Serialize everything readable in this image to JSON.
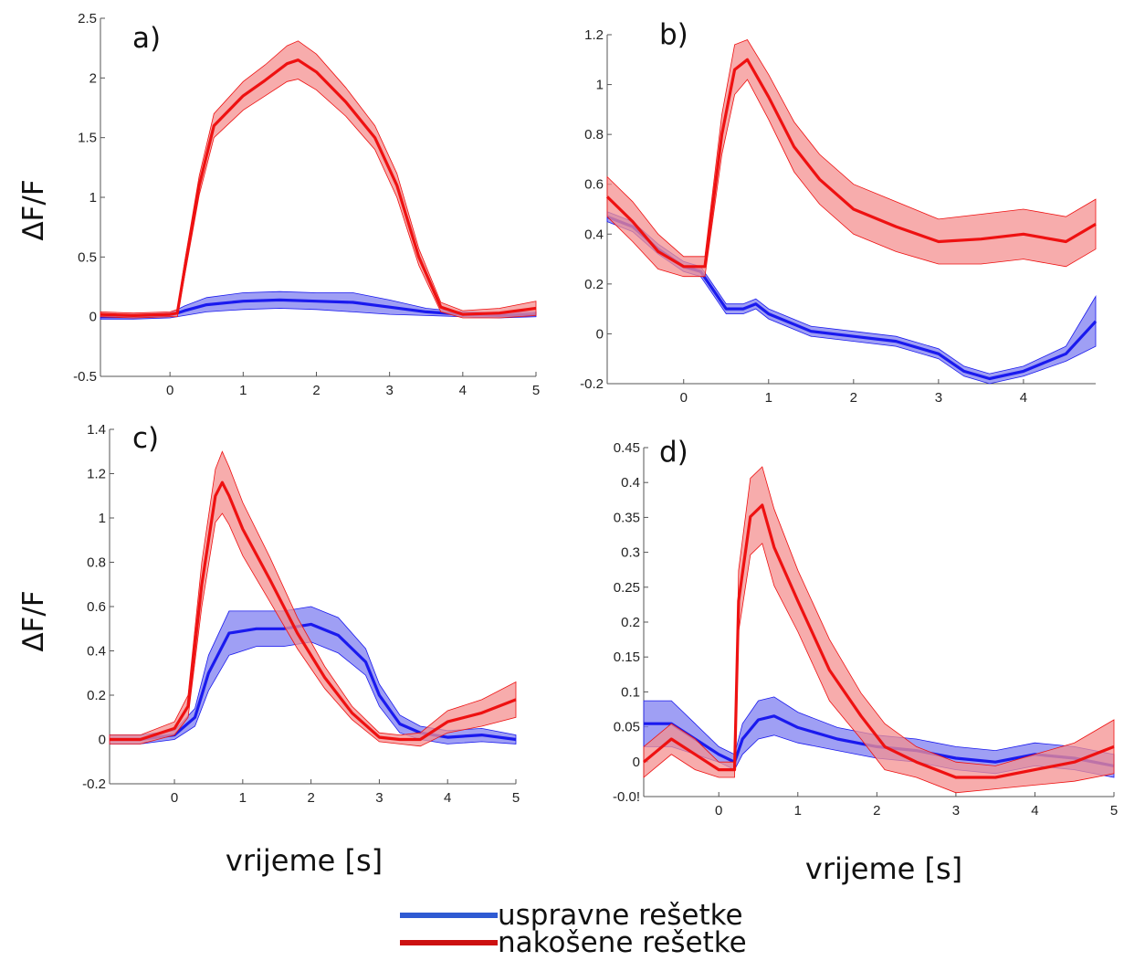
{
  "figure": {
    "xlabel_left": "vrijeme [s]",
    "xlabel_right": "vrijeme [s]",
    "ylabel_top": "ΔF/F",
    "ylabel_bottom": "ΔF/F",
    "legend": [
      {
        "label": "uspravne rešetke",
        "color": "#2f5bd3"
      },
      {
        "label": "nakošene rešetke",
        "color": "#cc1111"
      }
    ]
  },
  "colors": {
    "blue_line": "#1a1aee",
    "blue_band": "#7f7ff0",
    "red_line": "#ee1111",
    "red_band": "#f49090"
  },
  "chart_data": [
    {
      "type": "line",
      "panel": "a)",
      "xlim": [
        -0.95,
        5
      ],
      "ylim": [
        -0.5,
        2.5
      ],
      "xticks": [
        "0",
        "1",
        "2",
        "3",
        "4",
        "5"
      ],
      "yticks": [
        "-0.5",
        "0",
        "0.5",
        "1",
        "1.5",
        "2",
        "2.5"
      ],
      "series": [
        {
          "name": "uspravne rešetke",
          "color": "blue",
          "x": [
            -0.95,
            -0.5,
            0,
            0.2,
            0.5,
            1,
            1.5,
            2,
            2.5,
            3,
            3.5,
            4,
            4.5,
            5
          ],
          "y": [
            0.0,
            0.0,
            0.01,
            0.05,
            0.1,
            0.13,
            0.14,
            0.13,
            0.12,
            0.08,
            0.04,
            0.02,
            0.01,
            0.02
          ],
          "err": [
            0.02,
            0.02,
            0.02,
            0.04,
            0.06,
            0.07,
            0.07,
            0.07,
            0.08,
            0.06,
            0.03,
            0.02,
            0.02,
            0.02
          ]
        },
        {
          "name": "nakošene rešetke",
          "color": "red",
          "x": [
            -0.95,
            -0.5,
            0,
            0.1,
            0.2,
            0.4,
            0.6,
            1,
            1.3,
            1.6,
            1.75,
            2,
            2.4,
            2.8,
            3.1,
            3.4,
            3.7,
            4,
            4.5,
            5
          ],
          "y": [
            0.02,
            0.01,
            0.02,
            0.03,
            0.4,
            1.1,
            1.6,
            1.85,
            1.98,
            2.12,
            2.15,
            2.05,
            1.8,
            1.5,
            1.1,
            0.5,
            0.08,
            0.02,
            0.03,
            0.07
          ],
          "err": [
            0.02,
            0.02,
            0.02,
            0.03,
            0.06,
            0.08,
            0.1,
            0.12,
            0.13,
            0.15,
            0.16,
            0.15,
            0.12,
            0.1,
            0.1,
            0.07,
            0.04,
            0.03,
            0.04,
            0.06
          ]
        }
      ]
    },
    {
      "type": "line",
      "panel": "b)",
      "xlim": [
        -0.9,
        4.85
      ],
      "ylim": [
        -0.2,
        1.2
      ],
      "xticks": [
        "0",
        "1",
        "2",
        "3",
        "4"
      ],
      "yticks": [
        "-0.2",
        "0",
        "0.2",
        "0.4",
        "0.6",
        "0.8",
        "1",
        "1.2"
      ],
      "series": [
        {
          "name": "uspravne rešetke",
          "color": "blue",
          "x": [
            -0.9,
            -0.6,
            -0.3,
            0,
            0.2,
            0.3,
            0.5,
            0.7,
            0.85,
            1,
            1.5,
            2,
            2.5,
            3,
            3.3,
            3.6,
            4,
            4.5,
            4.85
          ],
          "y": [
            0.47,
            0.43,
            0.34,
            0.27,
            0.25,
            0.2,
            0.1,
            0.1,
            0.12,
            0.08,
            0.01,
            -0.01,
            -0.03,
            -0.08,
            -0.15,
            -0.18,
            -0.15,
            -0.08,
            0.05
          ],
          "err": [
            0.02,
            0.02,
            0.02,
            0.02,
            0.02,
            0.02,
            0.02,
            0.02,
            0.02,
            0.02,
            0.02,
            0.02,
            0.02,
            0.02,
            0.02,
            0.02,
            0.02,
            0.03,
            0.1
          ]
        },
        {
          "name": "nakošene rešetke",
          "color": "red",
          "x": [
            -0.9,
            -0.6,
            -0.3,
            0,
            0.25,
            0.45,
            0.6,
            0.75,
            1,
            1.3,
            1.6,
            2,
            2.5,
            3,
            3.5,
            4,
            4.5,
            4.85
          ],
          "y": [
            0.55,
            0.45,
            0.33,
            0.27,
            0.27,
            0.8,
            1.06,
            1.1,
            0.95,
            0.75,
            0.62,
            0.5,
            0.43,
            0.37,
            0.38,
            0.4,
            0.37,
            0.44
          ],
          "err": [
            0.08,
            0.08,
            0.07,
            0.04,
            0.04,
            0.08,
            0.1,
            0.08,
            0.09,
            0.1,
            0.1,
            0.1,
            0.1,
            0.09,
            0.1,
            0.1,
            0.1,
            0.1
          ]
        }
      ]
    },
    {
      "type": "line",
      "panel": "c)",
      "xlim": [
        -0.95,
        5
      ],
      "ylim": [
        -0.2,
        1.4
      ],
      "xticks": [
        "0",
        "1",
        "2",
        "3",
        "4",
        "5"
      ],
      "yticks": [
        "-0.2",
        "0",
        "0.2",
        "0.4",
        "0.6",
        "0.8",
        "1",
        "1.2",
        "1.4"
      ],
      "series": [
        {
          "name": "uspravne rešetke",
          "color": "blue",
          "x": [
            -0.95,
            -0.5,
            0,
            0.3,
            0.5,
            0.8,
            1.2,
            1.6,
            2,
            2.4,
            2.8,
            3,
            3.3,
            3.6,
            4,
            4.5,
            5
          ],
          "y": [
            0.0,
            0.0,
            0.02,
            0.1,
            0.3,
            0.48,
            0.5,
            0.5,
            0.52,
            0.47,
            0.35,
            0.2,
            0.07,
            0.03,
            0.01,
            0.02,
            0.0
          ],
          "err": [
            0.02,
            0.02,
            0.02,
            0.04,
            0.08,
            0.1,
            0.08,
            0.08,
            0.08,
            0.08,
            0.06,
            0.05,
            0.04,
            0.03,
            0.03,
            0.03,
            0.02
          ]
        },
        {
          "name": "nakošene rešetke",
          "color": "red",
          "x": [
            -0.95,
            -0.5,
            0,
            0.2,
            0.4,
            0.6,
            0.7,
            0.8,
            1,
            1.4,
            1.8,
            2.2,
            2.6,
            3,
            3.3,
            3.6,
            4,
            4.5,
            5
          ],
          "y": [
            0.0,
            0.0,
            0.05,
            0.15,
            0.7,
            1.1,
            1.16,
            1.1,
            0.95,
            0.72,
            0.48,
            0.28,
            0.12,
            0.01,
            0.0,
            0.0,
            0.08,
            0.12,
            0.18
          ],
          "err": [
            0.02,
            0.02,
            0.03,
            0.05,
            0.1,
            0.12,
            0.14,
            0.13,
            0.12,
            0.1,
            0.07,
            0.05,
            0.03,
            0.02,
            0.02,
            0.03,
            0.05,
            0.06,
            0.08
          ]
        }
      ]
    },
    {
      "type": "line",
      "panel": "d)",
      "xlim": [
        -0.95,
        5
      ],
      "ylim": [
        -0.005,
        0.45
      ],
      "xticks": [
        "0",
        "1",
        "2",
        "3",
        "4",
        "5"
      ],
      "yticks": [
        "-0.0!",
        "0",
        "0.05",
        "0.1",
        "0.15",
        "0.2",
        "0.25",
        "0.3",
        "0.35",
        "0.4",
        "0.45"
      ],
      "series": [
        {
          "name": "uspravne rešetke",
          "color": "blue",
          "x": [
            -0.95,
            -0.6,
            -0.3,
            0,
            0.2,
            0.3,
            0.5,
            0.7,
            1,
            1.5,
            2,
            2.5,
            3,
            3.5,
            4,
            4.5,
            5
          ],
          "y": [
            0.09,
            0.09,
            0.07,
            0.05,
            0.04,
            0.07,
            0.095,
            0.1,
            0.085,
            0.07,
            0.06,
            0.055,
            0.045,
            0.04,
            0.05,
            0.045,
            0.035
          ],
          "err": [
            0.03,
            0.03,
            0.02,
            0.01,
            0.01,
            0.02,
            0.025,
            0.025,
            0.02,
            0.015,
            0.015,
            0.015,
            0.015,
            0.015,
            0.015,
            0.015,
            0.015
          ]
        },
        {
          "name": "nakošene rešetke",
          "color": "red",
          "x": [
            -0.95,
            -0.6,
            -0.3,
            0,
            0.2,
            0.25,
            0.4,
            0.55,
            0.7,
            1,
            1.4,
            1.8,
            2.1,
            2.5,
            3,
            3.5,
            4,
            4.5,
            5
          ],
          "y": [
            0.04,
            0.07,
            0.05,
            0.03,
            0.03,
            0.25,
            0.36,
            0.375,
            0.32,
            0.25,
            0.16,
            0.1,
            0.06,
            0.04,
            0.02,
            0.02,
            0.03,
            0.04,
            0.06
          ],
          "err": [
            0.02,
            0.02,
            0.02,
            0.01,
            0.01,
            0.04,
            0.05,
            0.05,
            0.05,
            0.04,
            0.04,
            0.03,
            0.03,
            0.02,
            0.02,
            0.015,
            0.02,
            0.025,
            0.035
          ]
        }
      ]
    }
  ]
}
